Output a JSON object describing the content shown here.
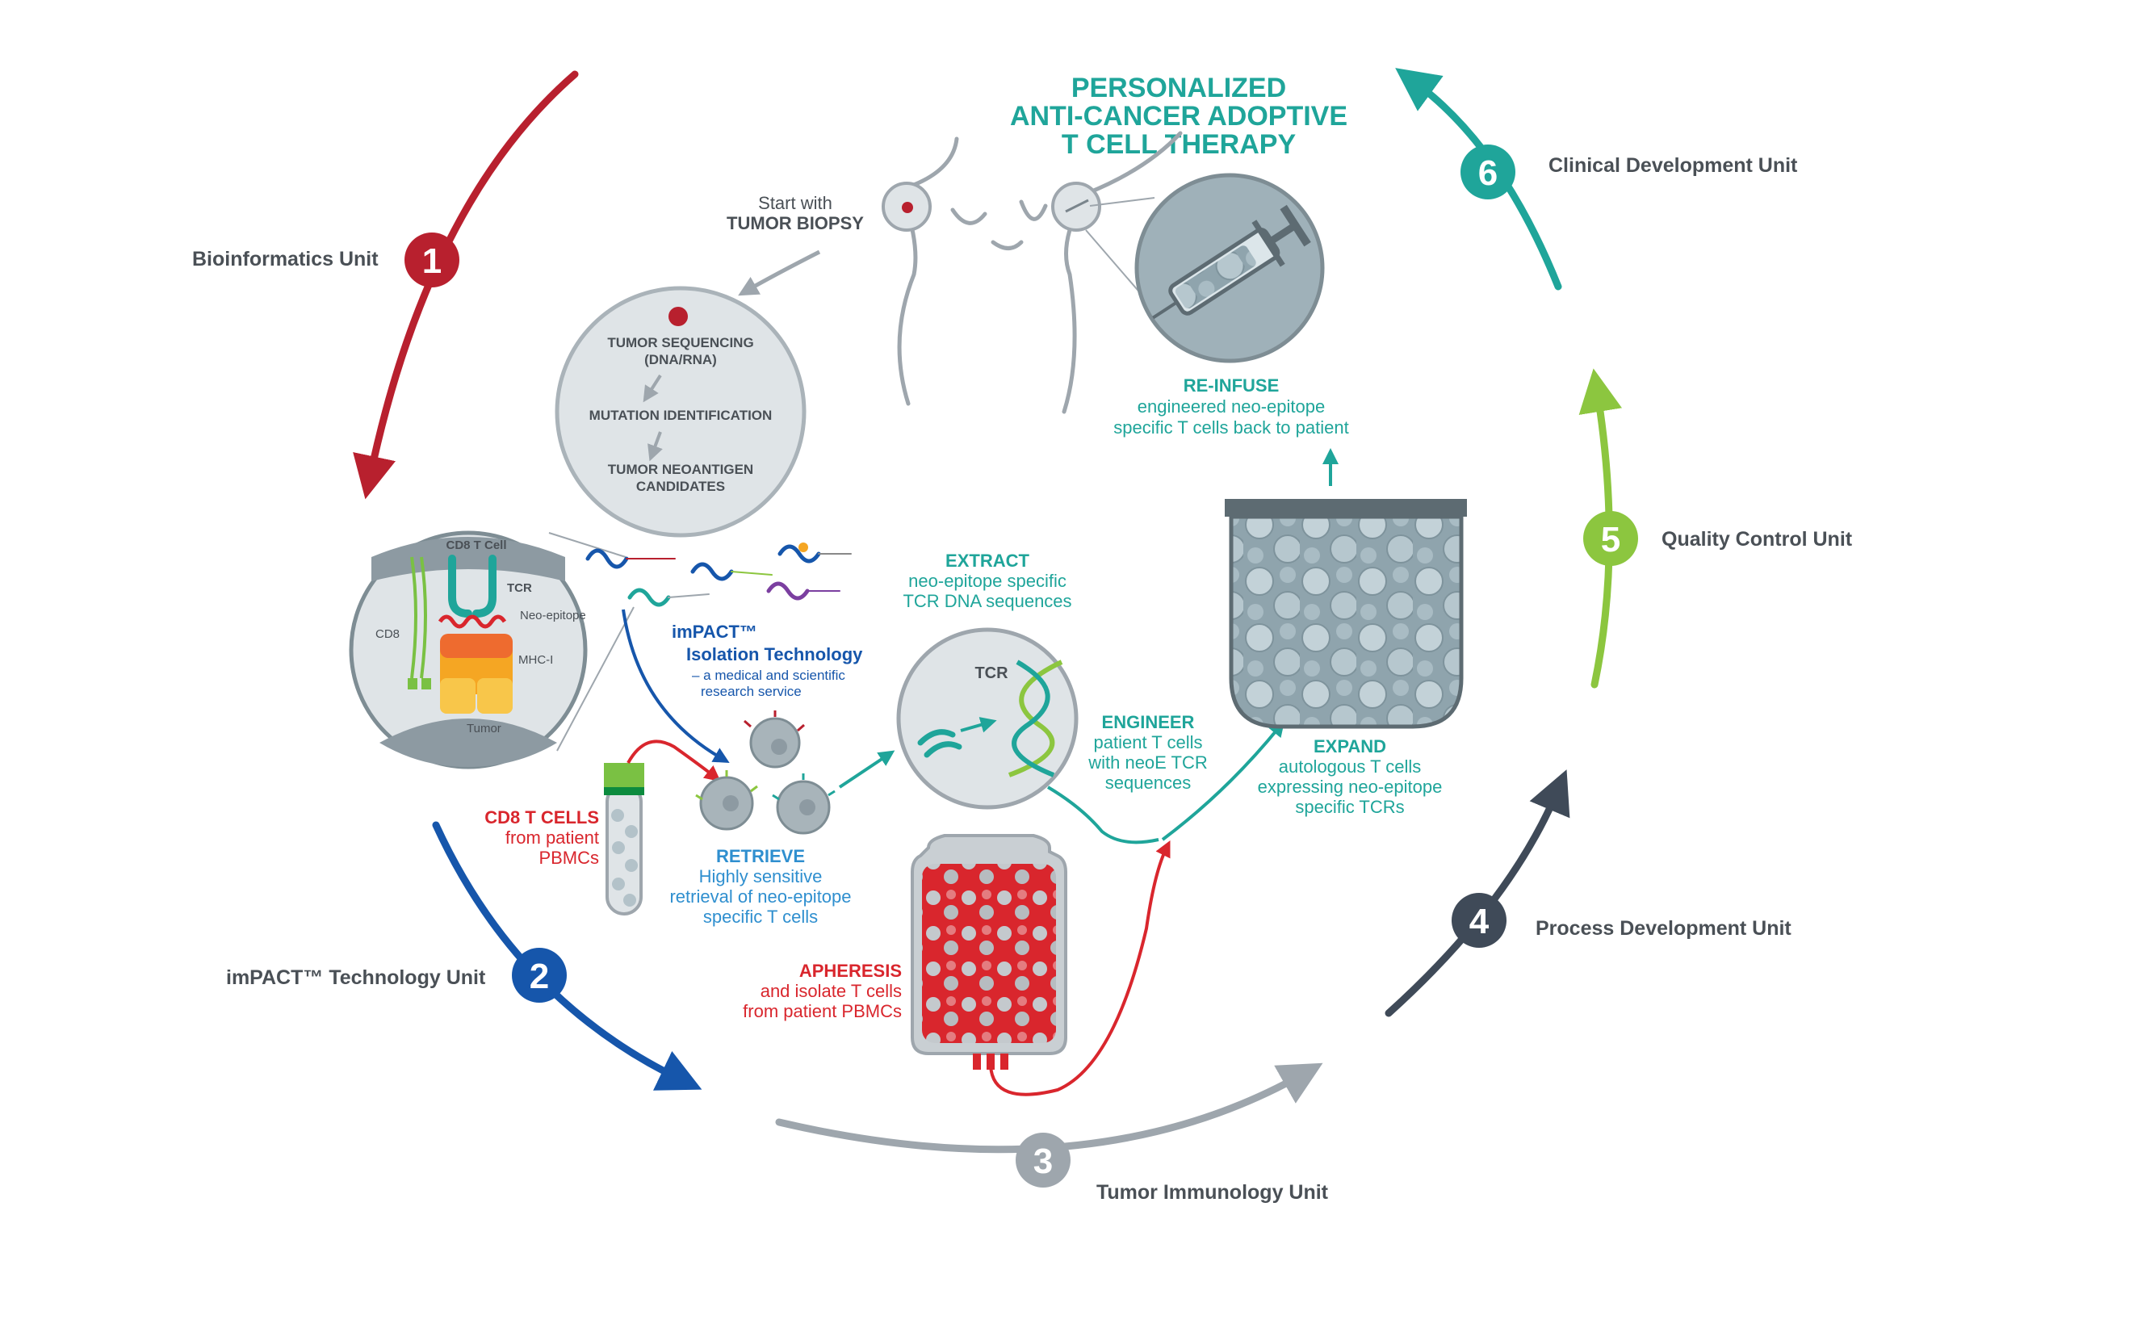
{
  "title": {
    "line1": "PERSONALIZED",
    "line2": "ANTI-CANCER ADOPTIVE",
    "line3": "T CELL THERAPY"
  },
  "units": [
    {
      "number": "1",
      "label": "Bioinformatics Unit",
      "color": "#b8202e"
    },
    {
      "number": "2",
      "label": "imPACT™ Technology Unit",
      "color": "#1656ab"
    },
    {
      "number": "3",
      "label": "Tumor Immunology Unit",
      "color": "#9ea6ad"
    },
    {
      "number": "4",
      "label": "Process Development Unit",
      "color": "#3f4a58"
    },
    {
      "number": "5",
      "label": "Quality Control Unit",
      "color": "#8cc63f"
    },
    {
      "number": "6",
      "label": "Clinical Development Unit",
      "color": "#1fa59a"
    }
  ],
  "biopsy": {
    "line1": "Start with",
    "line2": "TUMOR BIOPSY"
  },
  "sequencing": {
    "step1a": "TUMOR SEQUENCING",
    "step1b": "(DNA/RNA)",
    "step2": "MUTATION IDENTIFICATION",
    "step3a": "TUMOR NEOANTIGEN",
    "step3b": "CANDIDATES"
  },
  "complex": {
    "cd8_tcell": "CD8 T Cell",
    "tcr": "TCR",
    "neo_epitope": "Neo-epitope",
    "cd8": "CD8",
    "mhc": "MHC-I",
    "tumor": "Tumor"
  },
  "impact": {
    "line1": "imPACT™",
    "line2": "Isolation Technology",
    "line3": "– a medical and scientific",
    "line4": "research service"
  },
  "cd8cells": {
    "line1": "CD8 T CELLS",
    "line2": "from patient",
    "line3": "PBMCs"
  },
  "retrieve": {
    "head": "RETRIEVE",
    "line1": "Highly sensitive",
    "line2": "retrieval of neo-epitope",
    "line3": "specific T cells"
  },
  "extract": {
    "head": "EXTRACT",
    "line1": "neo-epitope specific",
    "line2": "TCR DNA sequences",
    "tcr_label": "TCR"
  },
  "engineer": {
    "head": "ENGINEER",
    "line1": "patient T cells",
    "line2": "with neoE TCR",
    "line3": "sequences"
  },
  "expand": {
    "head": "EXPAND",
    "line1": "autologous T cells",
    "line2": "expressing neo-epitope",
    "line3": "specific TCRs"
  },
  "reinfuse": {
    "head": "RE-INFUSE",
    "line1": "engineered neo-epitope",
    "line2": "specific T cells back to patient"
  },
  "apheresis": {
    "head": "APHERESIS",
    "line1": "and isolate T cells",
    "line2": "from patient PBMCs"
  },
  "colors": {
    "teal": "#1fa59a",
    "red": "#d9262d",
    "blue": "#1656ab",
    "lightblue": "#2f8fcf",
    "gray": "#bfc6cb",
    "darkgray": "#4a5056"
  }
}
